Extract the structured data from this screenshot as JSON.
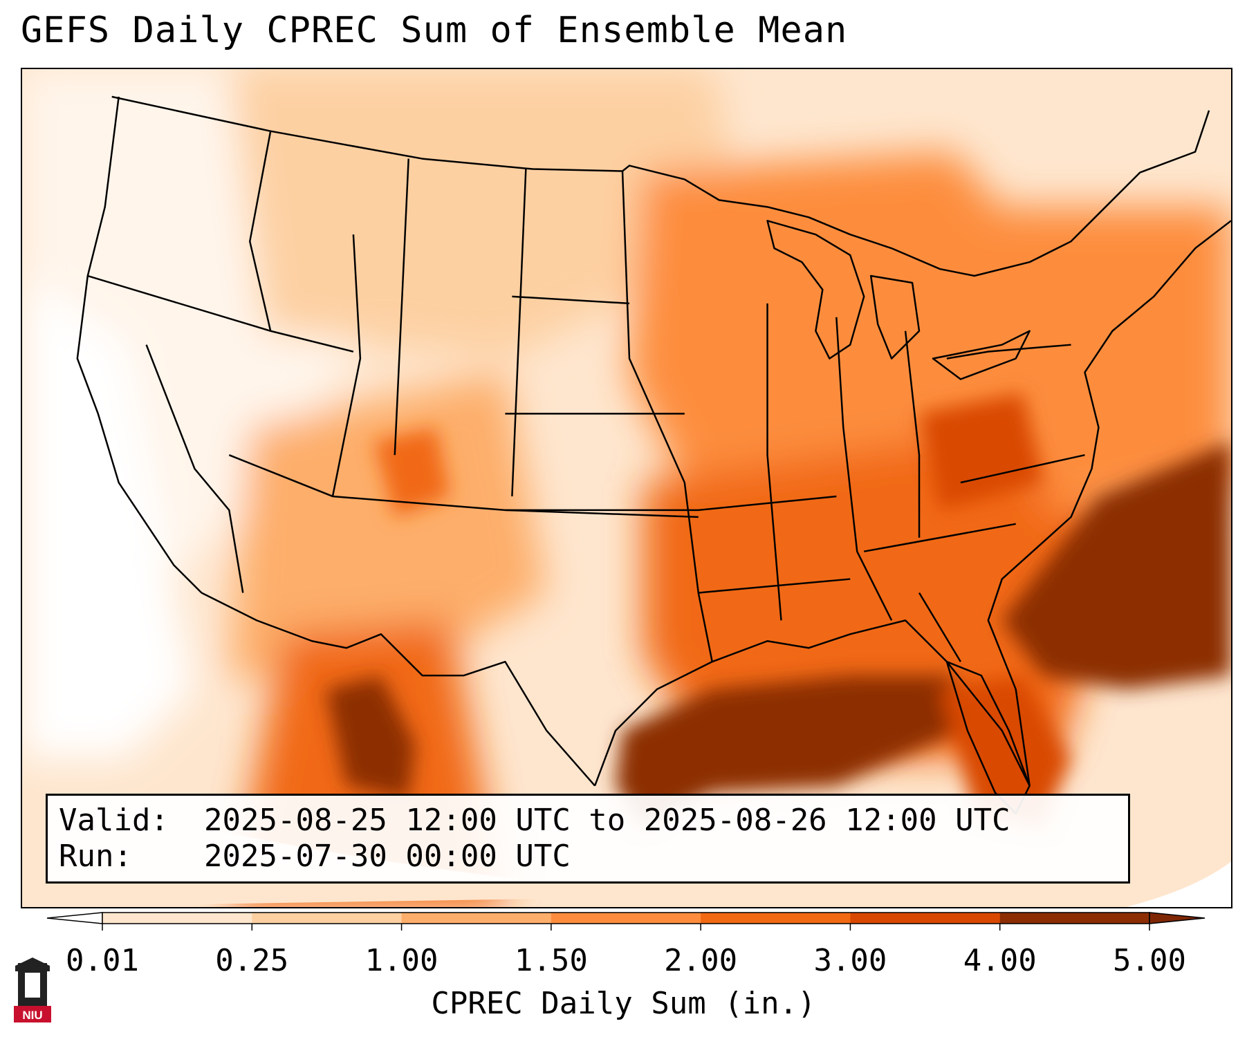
{
  "title": "GEFS Daily CPREC Sum of Ensemble Mean",
  "info": {
    "valid_label": "Valid:",
    "valid_value": "2025-08-25 12:00 UTC to 2025-08-26 12:00 UTC",
    "run_label": "Run:",
    "run_value": "2025-07-30 00:00 UTC"
  },
  "colorbar": {
    "label": "CPREC Daily Sum (in.)",
    "ticks": [
      "0.01",
      "0.25",
      "1.00",
      "1.50",
      "2.00",
      "3.00",
      "4.00",
      "5.00"
    ],
    "colors": [
      "#fff5eb",
      "#fee6ce",
      "#fdd0a2",
      "#fdae6b",
      "#fd8d3c",
      "#f16913",
      "#d94801",
      "#8c2d04"
    ],
    "under_color": "#ffffff",
    "over_color": "#7f2704"
  },
  "map": {
    "region": "Continental United States",
    "field": "CPREC daily sum, GEFS ensemble mean",
    "basemap": "state and country boundaries, coastlines"
  },
  "logo": {
    "text": "NIU",
    "color": "#c8102e"
  }
}
